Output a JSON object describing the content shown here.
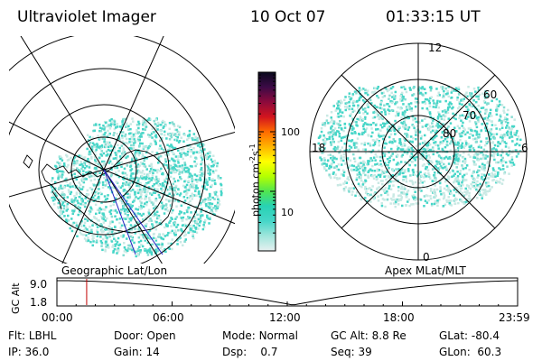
{
  "header": {
    "instrument": "Ultraviolet Imager",
    "date": "10 Oct 07",
    "time": "01:33:15 UT"
  },
  "colors": {
    "aurora_fill": "#46d6c8",
    "aurora_speck": "#c9e9e4",
    "timeline_marker": "#c00000",
    "meridian": "#2020c0"
  },
  "left_map": {
    "label": "Geographic Lat/Lon"
  },
  "right_map": {
    "label": "Apex MLat/MLT",
    "mlt_labels": {
      "top": "12",
      "left": "18",
      "right": "6",
      "bottom": "0"
    },
    "lat_labels": [
      "60",
      "70",
      "80"
    ]
  },
  "colorbar": {
    "unit_label": "photon cm",
    "unit_sup1": "-2",
    "unit_mid": "s",
    "unit_sup2": "-1",
    "ticks": [
      "100",
      "10"
    ],
    "log_range": [
      1,
      1000
    ],
    "stops": [
      "#0a0a1e",
      "#3c0a46",
      "#8c0a3c",
      "#d2141e",
      "#ff6a00",
      "#ffb400",
      "#ffff00",
      "#b4ff00",
      "#50e650",
      "#28d2b4",
      "#46d6c8",
      "#a0e6dc",
      "#e6f0f0"
    ]
  },
  "timeline": {
    "axis_label": "GC Alt",
    "y_ticks": [
      "9.0",
      "1.8"
    ],
    "x_ticks": [
      "00:00",
      "06:00",
      "12:00",
      "18:00",
      "23:59"
    ],
    "marker_hours": 1.55,
    "curve_min_hours": 12.3
  },
  "status": {
    "row1": [
      {
        "label": "Flt:",
        "value": "LBHL"
      },
      {
        "label": "Door:",
        "value": "Open"
      },
      {
        "label": "Mode:",
        "value": "Normal"
      },
      {
        "label": "GC Alt:",
        "value": "8.8 Re"
      },
      {
        "label": "GLat:",
        "value": "-80.4"
      }
    ],
    "row2": [
      {
        "label": "IP:",
        "value": "36.0"
      },
      {
        "label": "Gain:",
        "value": "14"
      },
      {
        "label": "Dsp:",
        "value": "0.7"
      },
      {
        "label": "Seq:",
        "value": "39"
      },
      {
        "label": "GLon:",
        "value": "60.3"
      }
    ]
  }
}
